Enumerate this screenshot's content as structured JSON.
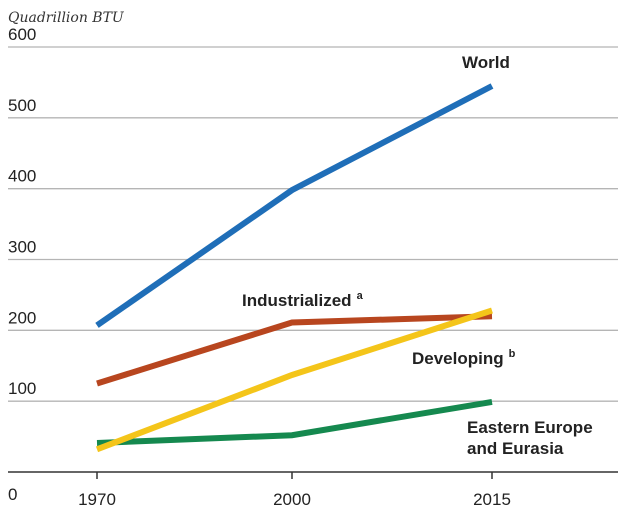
{
  "chart_data": {
    "type": "line",
    "title": "",
    "ylabel": "Quadrillion BTU",
    "xlabel": "",
    "x": [
      "1970",
      "2000",
      "2015"
    ],
    "ylim": [
      0,
      600
    ],
    "yticks": [
      0,
      100,
      200,
      300,
      400,
      500,
      600
    ],
    "grid": true,
    "series": [
      {
        "name": "World",
        "sup": "",
        "values": [
          207,
          398,
          545
        ],
        "color": "#1f6eb8"
      },
      {
        "name": "Industrialized",
        "sup": "a",
        "values": [
          125,
          211,
          220
        ],
        "color": "#b8461f"
      },
      {
        "name": "Developing",
        "sup": "b",
        "values": [
          32,
          137,
          228
        ],
        "color": "#f4c51a"
      },
      {
        "name": "Eastern Europe and Eurasia",
        "lines": [
          "Eastern Europe",
          "and Eurasia"
        ],
        "sup": "",
        "values": [
          41,
          52,
          99
        ],
        "color": "#15894f"
      }
    ]
  }
}
